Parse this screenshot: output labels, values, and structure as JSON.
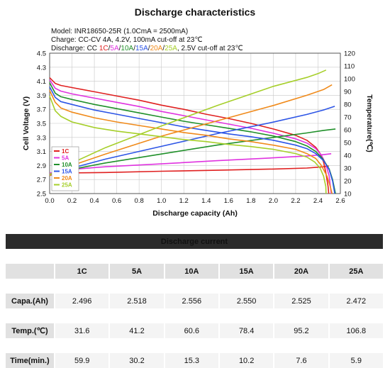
{
  "chart_data": {
    "type": "line",
    "title": "Discharge characteristics",
    "info": [
      "Model: INR18650-25R (1.0CmA = 2500mA)",
      "Charge: CC-CV 4A, 4.2V, 100mA cut-off at 23℃"
    ],
    "discharge_info": {
      "prefix": "Discharge: CC ",
      "rates": [
        "1C",
        "5A",
        "10A",
        "15A",
        "20A",
        "25A"
      ],
      "separator": "/",
      "suffix": ", 2.5V cut-off at 23℃"
    },
    "xlabel": "Discharge capacity (Ah)",
    "ylabel": "Cell Voltage (V)",
    "y2label": "Temperature(℃)",
    "xlim": [
      0.0,
      2.6
    ],
    "ylim": [
      2.5,
      4.5
    ],
    "y2lim": [
      10,
      120
    ],
    "xticks": [
      "0.0",
      "0.2",
      "0.4",
      "0.6",
      "0.8",
      "1.0",
      "1.2",
      "1.4",
      "1.6",
      "1.8",
      "2.0",
      "2.2",
      "2.4",
      "2.6"
    ],
    "yticks": [
      "2.5",
      "2.7",
      "2.9",
      "3.1",
      "3.3",
      "3.5",
      "3.7",
      "3.9",
      "4.1",
      "4.3",
      "4.5"
    ],
    "y2ticks": [
      "10",
      "20",
      "30",
      "40",
      "50",
      "60",
      "70",
      "80",
      "90",
      "100",
      "110",
      "120"
    ],
    "grid": true,
    "legend_position": "lower-left",
    "series": [
      {
        "name": "1C",
        "color": "#e02020",
        "voltage": [
          [
            0.0,
            4.15
          ],
          [
            0.05,
            4.07
          ],
          [
            0.1,
            4.04
          ],
          [
            0.2,
            4.01
          ],
          [
            0.4,
            3.95
          ],
          [
            0.6,
            3.89
          ],
          [
            0.8,
            3.83
          ],
          [
            1.0,
            3.76
          ],
          [
            1.2,
            3.7
          ],
          [
            1.4,
            3.63
          ],
          [
            1.6,
            3.57
          ],
          [
            1.8,
            3.5
          ],
          [
            2.0,
            3.42
          ],
          [
            2.2,
            3.33
          ],
          [
            2.3,
            3.26
          ],
          [
            2.38,
            3.16
          ],
          [
            2.42,
            3.07
          ],
          [
            2.45,
            2.95
          ],
          [
            2.47,
            2.8
          ],
          [
            2.49,
            2.6
          ],
          [
            2.496,
            2.5
          ]
        ],
        "temperature": [
          [
            0.0,
            26.0
          ],
          [
            0.5,
            26.5
          ],
          [
            1.0,
            27.5
          ],
          [
            1.5,
            28.3
          ],
          [
            2.0,
            29.2
          ],
          [
            2.3,
            30.0
          ],
          [
            2.45,
            31.0
          ],
          [
            2.496,
            31.6
          ]
        ]
      },
      {
        "name": "5A",
        "color": "#e033e0",
        "voltage": [
          [
            0.0,
            4.12
          ],
          [
            0.05,
            4.0
          ],
          [
            0.1,
            3.96
          ],
          [
            0.2,
            3.92
          ],
          [
            0.4,
            3.86
          ],
          [
            0.6,
            3.8
          ],
          [
            0.8,
            3.74
          ],
          [
            1.0,
            3.67
          ],
          [
            1.2,
            3.61
          ],
          [
            1.4,
            3.55
          ],
          [
            1.6,
            3.49
          ],
          [
            1.8,
            3.43
          ],
          [
            2.0,
            3.36
          ],
          [
            2.2,
            3.28
          ],
          [
            2.3,
            3.22
          ],
          [
            2.38,
            3.14
          ],
          [
            2.43,
            3.05
          ],
          [
            2.47,
            2.92
          ],
          [
            2.5,
            2.75
          ],
          [
            2.518,
            2.5
          ]
        ],
        "temperature": [
          [
            0.0,
            26.0
          ],
          [
            0.2,
            29.0
          ],
          [
            0.5,
            31.0
          ],
          [
            1.0,
            33.3
          ],
          [
            1.5,
            35.8
          ],
          [
            2.0,
            38.0
          ],
          [
            2.3,
            39.5
          ],
          [
            2.45,
            40.5
          ],
          [
            2.518,
            41.2
          ]
        ]
      },
      {
        "name": "10A",
        "color": "#20902a",
        "voltage": [
          [
            0.0,
            4.08
          ],
          [
            0.05,
            3.93
          ],
          [
            0.1,
            3.88
          ],
          [
            0.2,
            3.84
          ],
          [
            0.4,
            3.77
          ],
          [
            0.6,
            3.71
          ],
          [
            0.8,
            3.65
          ],
          [
            1.0,
            3.59
          ],
          [
            1.2,
            3.53
          ],
          [
            1.4,
            3.48
          ],
          [
            1.6,
            3.43
          ],
          [
            1.8,
            3.38
          ],
          [
            2.0,
            3.32
          ],
          [
            2.2,
            3.24
          ],
          [
            2.3,
            3.18
          ],
          [
            2.38,
            3.1
          ],
          [
            2.44,
            3.0
          ],
          [
            2.5,
            2.85
          ],
          [
            2.53,
            2.7
          ],
          [
            2.556,
            2.5
          ]
        ],
        "temperature": [
          [
            0.0,
            25.0
          ],
          [
            0.2,
            29.0
          ],
          [
            0.5,
            34.0
          ],
          [
            1.0,
            41.0
          ],
          [
            1.5,
            48.0
          ],
          [
            2.0,
            54.0
          ],
          [
            2.3,
            57.5
          ],
          [
            2.45,
            59.5
          ],
          [
            2.556,
            60.6
          ]
        ]
      },
      {
        "name": "15A",
        "color": "#2d55e6",
        "voltage": [
          [
            0.0,
            4.02
          ],
          [
            0.05,
            3.87
          ],
          [
            0.1,
            3.81
          ],
          [
            0.2,
            3.77
          ],
          [
            0.4,
            3.69
          ],
          [
            0.6,
            3.63
          ],
          [
            0.8,
            3.57
          ],
          [
            1.0,
            3.51
          ],
          [
            1.2,
            3.45
          ],
          [
            1.4,
            3.4
          ],
          [
            1.6,
            3.35
          ],
          [
            1.8,
            3.31
          ],
          [
            2.0,
            3.26
          ],
          [
            2.2,
            3.19
          ],
          [
            2.3,
            3.14
          ],
          [
            2.38,
            3.07
          ],
          [
            2.45,
            2.97
          ],
          [
            2.5,
            2.84
          ],
          [
            2.53,
            2.68
          ],
          [
            2.55,
            2.5
          ]
        ],
        "temperature": [
          [
            0.0,
            24.0
          ],
          [
            0.2,
            30.0
          ],
          [
            0.5,
            37.0
          ],
          [
            1.0,
            47.0
          ],
          [
            1.5,
            57.0
          ],
          [
            2.0,
            66.0
          ],
          [
            2.3,
            72.0
          ],
          [
            2.45,
            75.5
          ],
          [
            2.55,
            78.4
          ]
        ]
      },
      {
        "name": "20A",
        "color": "#f08a1a",
        "voltage": [
          [
            0.0,
            3.97
          ],
          [
            0.05,
            3.8
          ],
          [
            0.1,
            3.72
          ],
          [
            0.2,
            3.66
          ],
          [
            0.4,
            3.58
          ],
          [
            0.6,
            3.52
          ],
          [
            0.8,
            3.47
          ],
          [
            1.0,
            3.42
          ],
          [
            1.2,
            3.37
          ],
          [
            1.4,
            3.33
          ],
          [
            1.6,
            3.28
          ],
          [
            1.8,
            3.24
          ],
          [
            2.0,
            3.19
          ],
          [
            2.2,
            3.13
          ],
          [
            2.3,
            3.07
          ],
          [
            2.38,
            3.0
          ],
          [
            2.43,
            2.9
          ],
          [
            2.48,
            2.75
          ],
          [
            2.51,
            2.6
          ],
          [
            2.525,
            2.5
          ]
        ],
        "temperature": [
          [
            0.0,
            24.0
          ],
          [
            0.2,
            32.0
          ],
          [
            0.5,
            41.0
          ],
          [
            1.0,
            55.0
          ],
          [
            1.5,
            67.0
          ],
          [
            2.0,
            79.0
          ],
          [
            2.3,
            87.0
          ],
          [
            2.45,
            91.5
          ],
          [
            2.525,
            95.2
          ]
        ]
      },
      {
        "name": "25A",
        "color": "#a6cf2a",
        "voltage": [
          [
            0.0,
            3.89
          ],
          [
            0.05,
            3.68
          ],
          [
            0.1,
            3.6
          ],
          [
            0.2,
            3.52
          ],
          [
            0.4,
            3.44
          ],
          [
            0.6,
            3.39
          ],
          [
            0.8,
            3.35
          ],
          [
            1.0,
            3.31
          ],
          [
            1.2,
            3.27
          ],
          [
            1.4,
            3.24
          ],
          [
            1.6,
            3.2
          ],
          [
            1.8,
            3.17
          ],
          [
            2.0,
            3.13
          ],
          [
            2.2,
            3.07
          ],
          [
            2.3,
            3.02
          ],
          [
            2.37,
            2.95
          ],
          [
            2.42,
            2.86
          ],
          [
            2.45,
            2.75
          ],
          [
            2.47,
            2.6
          ],
          [
            2.472,
            2.5
          ]
        ],
        "temperature": [
          [
            0.0,
            25.0
          ],
          [
            0.2,
            34.0
          ],
          [
            0.5,
            46.0
          ],
          [
            1.0,
            63.0
          ],
          [
            1.5,
            79.0
          ],
          [
            2.0,
            94.0
          ],
          [
            2.3,
            101.0
          ],
          [
            2.4,
            104.0
          ],
          [
            2.472,
            106.8
          ]
        ]
      }
    ]
  },
  "table": {
    "caption": "Discharge current",
    "columns": [
      "1C",
      "5A",
      "10A",
      "15A",
      "20A",
      "25A"
    ],
    "rows": [
      {
        "label": "Capa.(Ah)",
        "values": [
          "2.496",
          "2.518",
          "2.556",
          "2.550",
          "2.525",
          "2.472"
        ]
      },
      {
        "label": "Temp.(℃)",
        "values": [
          "31.6",
          "41.2",
          "60.6",
          "78.4",
          "95.2",
          "106.8"
        ]
      },
      {
        "label": "Time(min.)",
        "values": [
          "59.9",
          "30.2",
          "15.3",
          "10.2",
          "7.6",
          "5.9"
        ]
      }
    ]
  }
}
